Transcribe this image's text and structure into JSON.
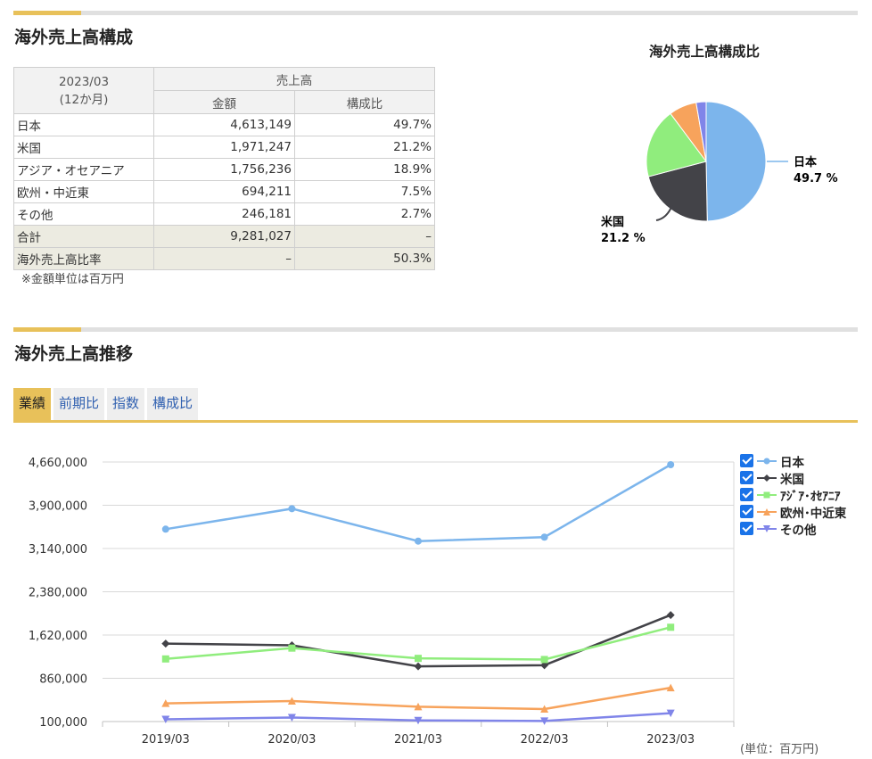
{
  "composition": {
    "title": "海外売上高構成",
    "table": {
      "period": "2023/03",
      "period_note": "(12か月)",
      "group_header": "売上高",
      "col_amount": "金額",
      "col_ratio": "構成比",
      "rows": [
        {
          "label": "日本",
          "amount": "4,613,149",
          "ratio": "49.7%"
        },
        {
          "label": "米国",
          "amount": "1,971,247",
          "ratio": "21.2%"
        },
        {
          "label": "アジア・オセアニア",
          "amount": "1,756,236",
          "ratio": "18.9%"
        },
        {
          "label": "欧州・中近東",
          "amount": "694,211",
          "ratio": "7.5%"
        },
        {
          "label": "その他",
          "amount": "246,181",
          "ratio": "2.7%"
        }
      ],
      "total": {
        "label": "合計",
        "amount": "9,281,027",
        "ratio": "–"
      },
      "overseas": {
        "label": "海外売上高比率",
        "amount": "–",
        "ratio": "50.3%"
      }
    },
    "note": "※金額単位は百万円"
  },
  "pie": {
    "title": "海外売上高構成比",
    "label_japan": "日本",
    "value_japan": "49.7 %",
    "label_us": "米国",
    "value_us": "21.2 %"
  },
  "trend": {
    "title": "海外売上高推移",
    "tabs": [
      "業績",
      "前期比",
      "指数",
      "構成比"
    ],
    "active_tab": "業績",
    "unit_note": "(単位：百万円)"
  },
  "chart_data": [
    {
      "type": "pie",
      "title": "海外売上高構成比",
      "categories": [
        "日本",
        "米国",
        "アジア・オセアニア",
        "欧州・中近東",
        "その他"
      ],
      "values": [
        49.7,
        21.2,
        18.9,
        7.5,
        2.7
      ],
      "colors": [
        "#7cb5ec",
        "#434348",
        "#90ed7d",
        "#f7a35c",
        "#8085e9"
      ]
    },
    {
      "type": "line",
      "categories": [
        "2019/03",
        "2020/03",
        "2021/03",
        "2022/03",
        "2023/03"
      ],
      "ylim": [
        100000,
        4660000
      ],
      "yticks": [
        100000,
        860000,
        1620000,
        2380000,
        3140000,
        3900000,
        4660000
      ],
      "ytick_labels": [
        "100,000",
        "860,000",
        "1,620,000",
        "2,380,000",
        "3,140,000",
        "3,900,000",
        "4,660,000"
      ],
      "grid": true,
      "legend": "right",
      "series": [
        {
          "name": "日本",
          "color": "#7cb5ec",
          "marker": "circle",
          "values": [
            3480000,
            3840000,
            3270000,
            3340000,
            4613149
          ]
        },
        {
          "name": "米国",
          "color": "#434348",
          "marker": "diamond",
          "values": [
            1470000,
            1440000,
            1070000,
            1090000,
            1971247
          ]
        },
        {
          "name": "ｱｼﾞｱ･ｵｾｱﾆｱ",
          "color": "#90ed7d",
          "marker": "square",
          "values": [
            1200000,
            1390000,
            1210000,
            1190000,
            1756236
          ]
        },
        {
          "name": "欧州･中近東",
          "color": "#f7a35c",
          "marker": "triangle",
          "values": [
            420000,
            460000,
            360000,
            320000,
            694211
          ]
        },
        {
          "name": "その他",
          "color": "#8085e9",
          "marker": "triangle-down",
          "values": [
            140000,
            170000,
            120000,
            110000,
            246181
          ]
        }
      ]
    }
  ]
}
